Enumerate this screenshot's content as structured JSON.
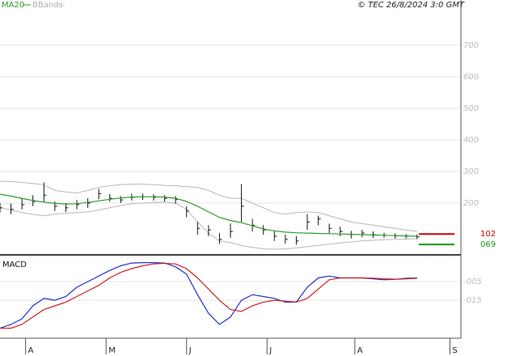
{
  "chart_data": {
    "type": "ohlc",
    "legend": [
      {
        "name": "MA20",
        "color": "#2a9d2a"
      },
      {
        "name": "BBands",
        "color": "#b0b0b0"
      }
    ],
    "source": "© TEC 26/8/2024 3:0 GMT",
    "x": [
      0,
      3,
      6,
      9,
      12,
      15,
      18,
      21,
      24,
      27,
      30,
      33,
      36,
      39,
      42,
      45,
      48,
      51,
      54,
      57,
      60,
      63,
      66,
      69,
      72,
      75,
      78,
      81,
      84,
      87,
      90,
      93,
      96,
      99,
      102,
      105,
      108,
      111,
      114
    ],
    "xlim": [
      0,
      126
    ],
    "xticks": [
      {
        "value": 7,
        "label": "A"
      },
      {
        "value": 29,
        "label": "M"
      },
      {
        "value": 51,
        "label": "J"
      },
      {
        "value": 73,
        "label": "J"
      },
      {
        "value": 97,
        "label": "A"
      },
      {
        "value": 123,
        "label": "S"
      }
    ],
    "ylim": [
      36,
      843
    ],
    "yticks": [
      200,
      300,
      400,
      500,
      600,
      700
    ],
    "grid": true,
    "close": [
      185,
      180,
      195,
      205,
      225,
      190,
      185,
      195,
      200,
      230,
      215,
      210,
      218,
      220,
      218,
      215,
      212,
      175,
      120,
      115,
      85,
      110,
      190,
      130,
      115,
      95,
      85,
      80,
      140,
      150,
      120,
      110,
      100,
      105,
      100,
      98,
      96,
      95,
      93
    ],
    "high": [
      200,
      198,
      215,
      225,
      265,
      205,
      200,
      210,
      215,
      245,
      228,
      222,
      230,
      230,
      228,
      225,
      222,
      190,
      140,
      130,
      105,
      135,
      260,
      150,
      130,
      110,
      100,
      95,
      165,
      160,
      135,
      125,
      112,
      115,
      110,
      106,
      104,
      102,
      100
    ],
    "low": [
      170,
      165,
      180,
      190,
      205,
      175,
      172,
      180,
      185,
      212,
      205,
      200,
      208,
      210,
      208,
      205,
      198,
      155,
      100,
      95,
      70,
      90,
      140,
      110,
      100,
      80,
      72,
      68,
      115,
      130,
      105,
      95,
      88,
      92,
      90,
      90,
      88,
      88,
      86
    ],
    "ma20": {
      "name": "MA20",
      "color": "#2a9d2a",
      "values": [
        228,
        222,
        215,
        208,
        203,
        199,
        197,
        198,
        202,
        207,
        212,
        216,
        219,
        220,
        220,
        219,
        215,
        205,
        190,
        172,
        155,
        145,
        138,
        128,
        118,
        112,
        108,
        106,
        105,
        104,
        103,
        102,
        101,
        100,
        99,
        98,
        97,
        96,
        95
      ]
    },
    "bb_upper": {
      "color": "#b8b8b8",
      "values": [
        269,
        268,
        265,
        262,
        258,
        240,
        235,
        232,
        240,
        250,
        255,
        258,
        260,
        260,
        258,
        256,
        255,
        252,
        250,
        240,
        225,
        215,
        215,
        200,
        185,
        170,
        165,
        170,
        172,
        170,
        160,
        150,
        140,
        135,
        130,
        125,
        120,
        115,
        110
      ]
    },
    "bb_lower": {
      "color": "#b8b8b8",
      "values": [
        185,
        178,
        170,
        164,
        160,
        165,
        168,
        170,
        172,
        178,
        185,
        192,
        198,
        200,
        202,
        203,
        200,
        180,
        140,
        105,
        80,
        75,
        65,
        60,
        55,
        54,
        55,
        58,
        62,
        66,
        70,
        74,
        77,
        80,
        82,
        84,
        85,
        86,
        87
      ]
    },
    "levels": [
      {
        "value": 102,
        "color": "#d40000"
      },
      {
        "value": 69,
        "label": "069",
        "color": "#119911"
      }
    ],
    "macd_panel": {
      "title": "MACD",
      "ylim": [
        -35.4,
        8.5
      ],
      "yticks": [
        {
          "value": -5,
          "label": "-005"
        },
        {
          "value": -15,
          "label": "-015"
        }
      ],
      "series": [
        {
          "color": "#2233cc",
          "values": [
            -30,
            -28,
            -25,
            -18,
            -14,
            -15,
            -13,
            -8,
            -5,
            -2,
            1,
            3.5,
            5,
            5.2,
            5.2,
            5,
            3,
            -1,
            -12,
            -22,
            -28,
            -24,
            -15,
            -12,
            -13,
            -14,
            -16,
            -16,
            -8,
            -3,
            -2,
            -3,
            -3,
            -3,
            -3.5,
            -4,
            -3.8,
            -3.2,
            -3
          ]
        },
        {
          "color": "#cc2222",
          "values": [
            -30,
            -30,
            -28,
            -24,
            -20,
            -18,
            -16,
            -13,
            -10,
            -7,
            -3,
            0,
            2,
            3.5,
            4.5,
            4.8,
            4.5,
            2,
            -3,
            -9,
            -15,
            -20,
            -21,
            -18,
            -16,
            -15,
            -15.5,
            -16,
            -14,
            -9,
            -4,
            -3,
            -3,
            -3,
            -3.2,
            -3.5,
            -3.7,
            -3.5,
            -3.2
          ]
        }
      ]
    }
  }
}
